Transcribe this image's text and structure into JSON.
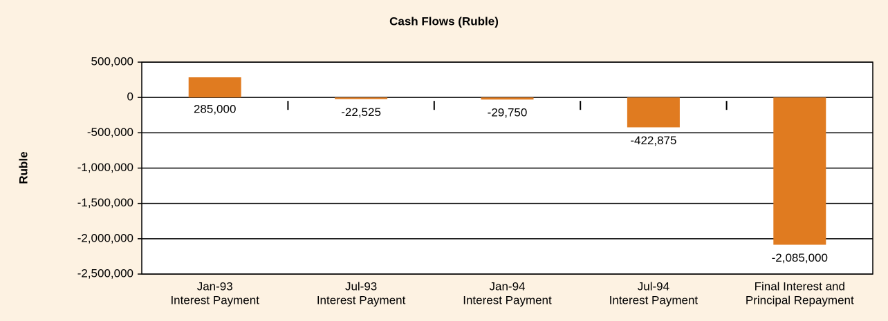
{
  "chart_data": {
    "type": "bar",
    "title": "Cash Flows (Ruble)",
    "y_label": "Ruble",
    "categories": [
      [
        "Jan-93",
        "Interest Payment"
      ],
      [
        "Jul-93",
        "Interest Payment"
      ],
      [
        "Jan-94",
        "Interest Payment"
      ],
      [
        "Jul-94",
        "Interest Payment"
      ],
      [
        "Final Interest and",
        "Principal Repayment"
      ]
    ],
    "values": [
      285000,
      -22525,
      -29750,
      -422875,
      -2085000
    ],
    "value_labels": [
      "285,000",
      "-22,525",
      "-29,750",
      "-422,875",
      "-2,085,000"
    ],
    "color": "#e07b20",
    "ylim": [
      -2500000,
      500000
    ],
    "yticks": [
      {
        "value": 500000,
        "label": "500,000"
      },
      0,
      {
        "value": -500000,
        "label": "-500,000"
      },
      {
        "value": -1000000,
        "label": "-1,000,000"
      },
      {
        "value": -1500000,
        "label": "-1,500,000"
      },
      {
        "value": -2000000,
        "label": "-2,000,000"
      },
      {
        "value": -2500000,
        "label": "-2,500,000"
      }
    ],
    "grid": true
  }
}
